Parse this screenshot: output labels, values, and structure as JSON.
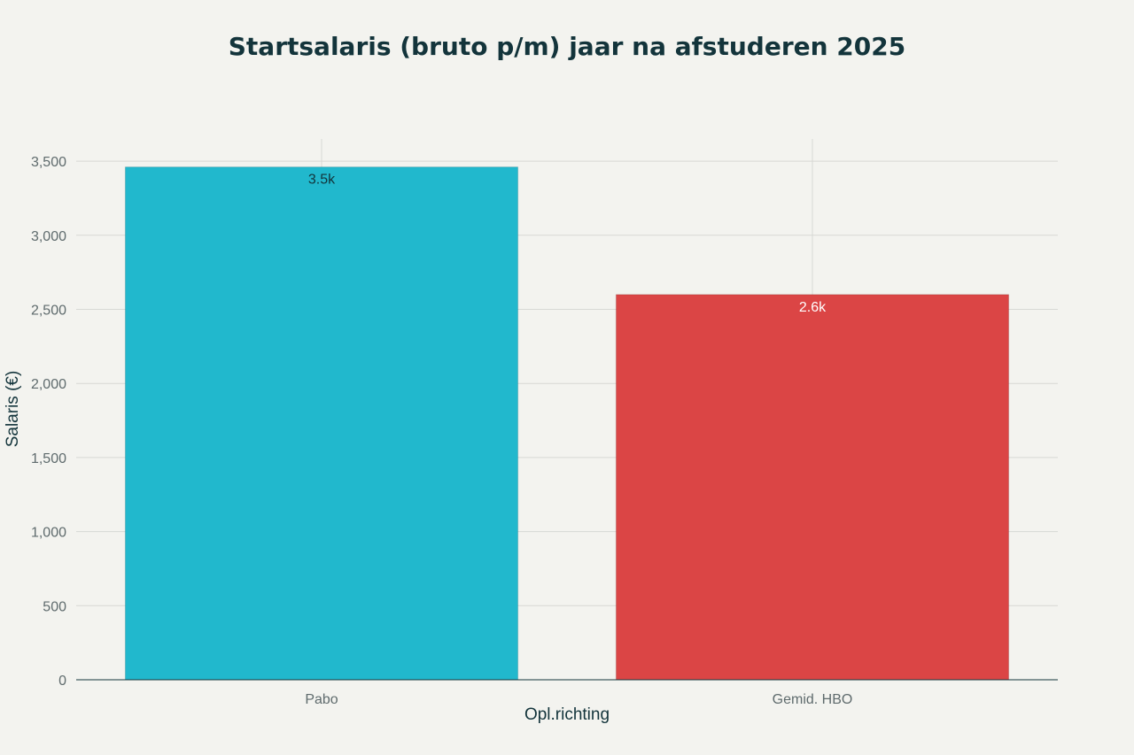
{
  "chart_data": {
    "type": "bar",
    "title": "Startsalaris (bruto p/m) jaar na afstuderen 2025",
    "xlabel": "Opl.richting",
    "ylabel": "Salaris (€)",
    "categories": [
      "Pabo",
      "Gemid. HBO"
    ],
    "values": [
      3461,
      2600
    ],
    "data_labels": [
      "3.5k",
      "2.6k"
    ],
    "bar_colors": [
      "#21b8cd",
      "#db4545"
    ],
    "data_label_colors": [
      "#13343b",
      "#ffffff"
    ],
    "yticks": [
      0,
      500,
      1000,
      1500,
      2000,
      2500,
      3000,
      3500
    ],
    "ytick_labels": [
      "0",
      "500",
      "1,000",
      "1,500",
      "2,000",
      "2,500",
      "3,000",
      "3,500"
    ],
    "ylim": [
      0,
      3650
    ],
    "grid": true,
    "legend": "none"
  }
}
